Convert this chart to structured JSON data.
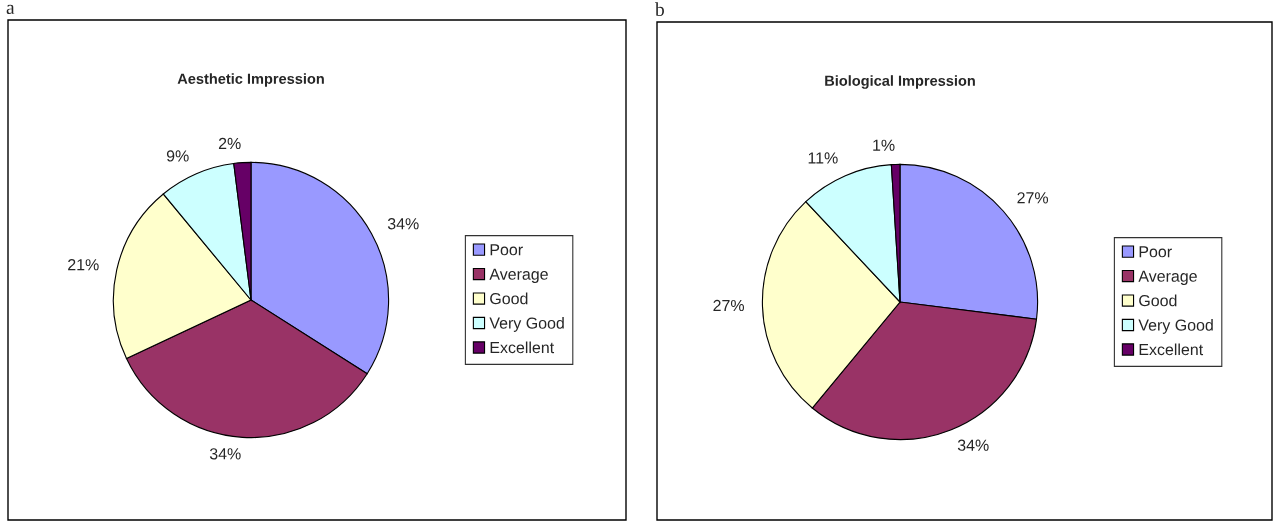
{
  "chart_data": [
    {
      "type": "pie",
      "title": "Aesthetic Impression",
      "annotations": [
        "a"
      ],
      "categories": [
        "Poor",
        "Average",
        "Good",
        "Very Good",
        "Excellent"
      ],
      "values": [
        34,
        34,
        21,
        9,
        2
      ],
      "value_labels": [
        "34%",
        "34%",
        "21%",
        "9%",
        "2%"
      ],
      "colors": [
        "#9999ff",
        "#993366",
        "#ffffcc",
        "#ccffff",
        "#660066"
      ],
      "legend": "right"
    },
    {
      "type": "pie",
      "title": "Biological Impression",
      "annotations": [
        "b"
      ],
      "categories": [
        "Poor",
        "Average",
        "Good",
        "Very Good",
        "Excellent"
      ],
      "values": [
        27,
        34,
        27,
        11,
        1
      ],
      "value_labels": [
        "27%",
        "34%",
        "27%",
        "11%",
        "1%"
      ],
      "colors": [
        "#9999ff",
        "#993366",
        "#ffffcc",
        "#ccffff",
        "#660066"
      ],
      "legend": "right"
    }
  ]
}
